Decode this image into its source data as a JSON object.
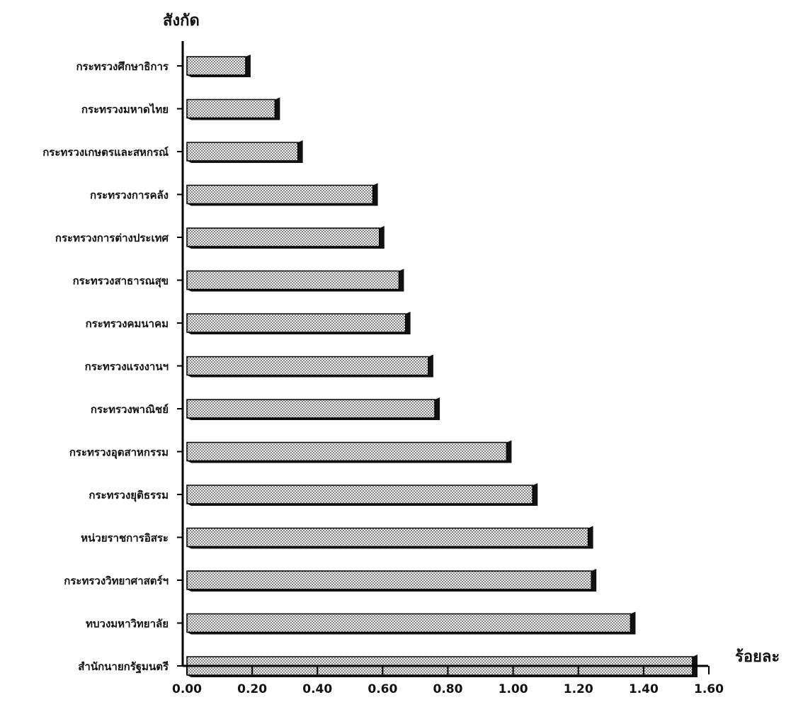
{
  "chart_data": {
    "type": "bar",
    "orientation": "horizontal",
    "y_axis_title": "สังกัด",
    "x_axis_title": "ร้อยละ",
    "categories": [
      "กระทรวงศึกษาธิการ",
      "กระทรวงมหาดไทย",
      "กระทรวงเกษตรและสหกรณ์",
      "กระทรวงการคลัง",
      "กระทรวงการต่างประเทศ",
      "กระทรวงสาธารณสุข",
      "กระทรวงคมนาคม",
      "กระทรวงแรงงานฯ",
      "กระทรวงพาณิชย์",
      "กระทรวงอุตสาหกรรม",
      "กระทรวงยุติธรรม",
      "หน่วยราชการอิสระ",
      "กระทรวงวิทยาศาสตร์ฯ",
      "ทบวงมหาวิทยาลัย",
      "สำนักนายกรัฐมนตรี"
    ],
    "values": [
      0.18,
      0.27,
      0.34,
      0.57,
      0.59,
      0.65,
      0.67,
      0.74,
      0.76,
      0.98,
      1.06,
      1.23,
      1.24,
      1.36,
      1.55
    ],
    "xlim": [
      0,
      1.6
    ],
    "x_ticks": [
      "0.00",
      "0.20",
      "0.40",
      "0.60",
      "0.80",
      "1.00",
      "1.20",
      "1.40",
      "1.60"
    ],
    "grid": false,
    "legend": "none",
    "bar_fill_pattern": "dotted",
    "bar_color": "#f4f4f4",
    "bar_border_color": "#000000"
  }
}
